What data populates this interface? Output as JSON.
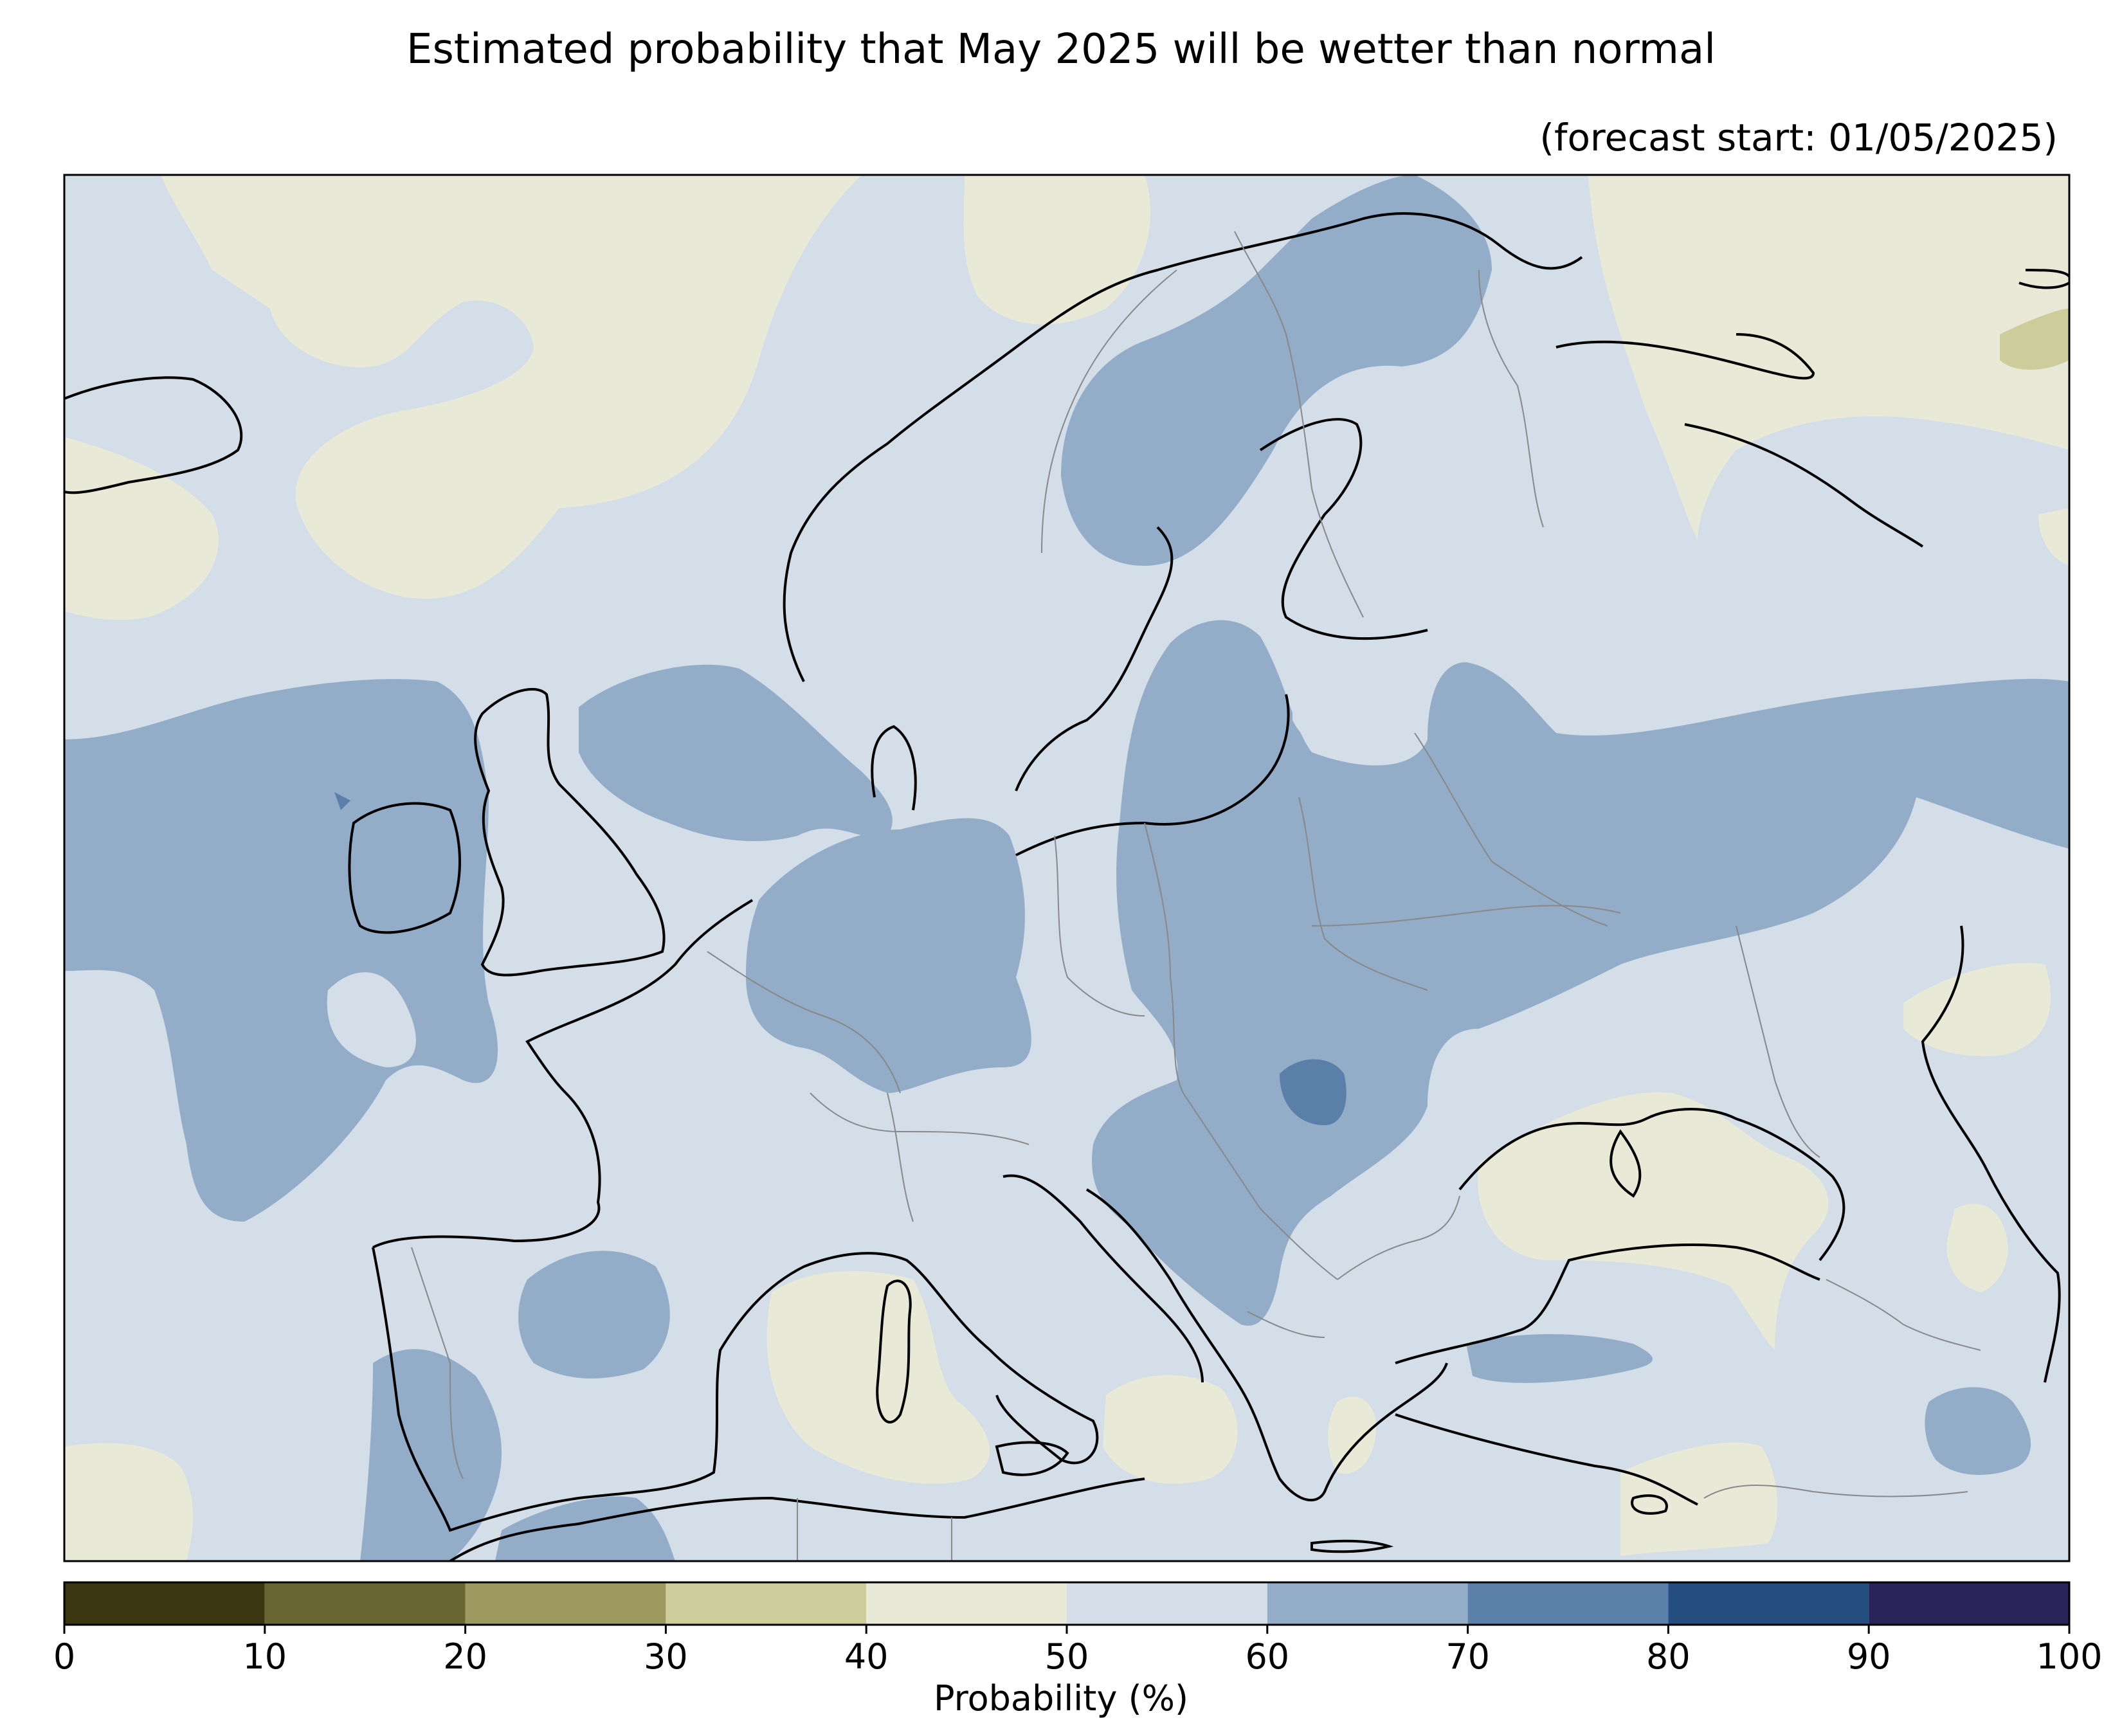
{
  "title": "Estimated probability that May 2025 will be wetter than normal",
  "subtitle": "(forecast start: 01/05/2025)",
  "colorbar": {
    "label": "Probability (%)",
    "ticks": [
      "0",
      "10",
      "20",
      "30",
      "40",
      "50",
      "60",
      "70",
      "80",
      "90",
      "100"
    ],
    "bins": [
      {
        "range": [
          0,
          10
        ],
        "color": "#3b3510"
      },
      {
        "range": [
          10,
          20
        ],
        "color": "#6a6633"
      },
      {
        "range": [
          20,
          30
        ],
        "color": "#9e9a5f"
      },
      {
        "range": [
          30,
          40
        ],
        "color": "#cccd9a"
      },
      {
        "range": [
          40,
          50
        ],
        "color": "#e9e9d8"
      },
      {
        "range": [
          50,
          60
        ],
        "color": "#d4dee9"
      },
      {
        "range": [
          60,
          70
        ],
        "color": "#93adc8"
      },
      {
        "range": [
          70,
          80
        ],
        "color": "#5a7fa8"
      },
      {
        "range": [
          80,
          90
        ],
        "color": "#264d80"
      },
      {
        "range": [
          90,
          100
        ],
        "color": "#28245a"
      }
    ]
  },
  "map": {
    "region": "Europe",
    "background_class": "50-60",
    "coastline_color": "#000000",
    "border_color": "#888888"
  }
}
